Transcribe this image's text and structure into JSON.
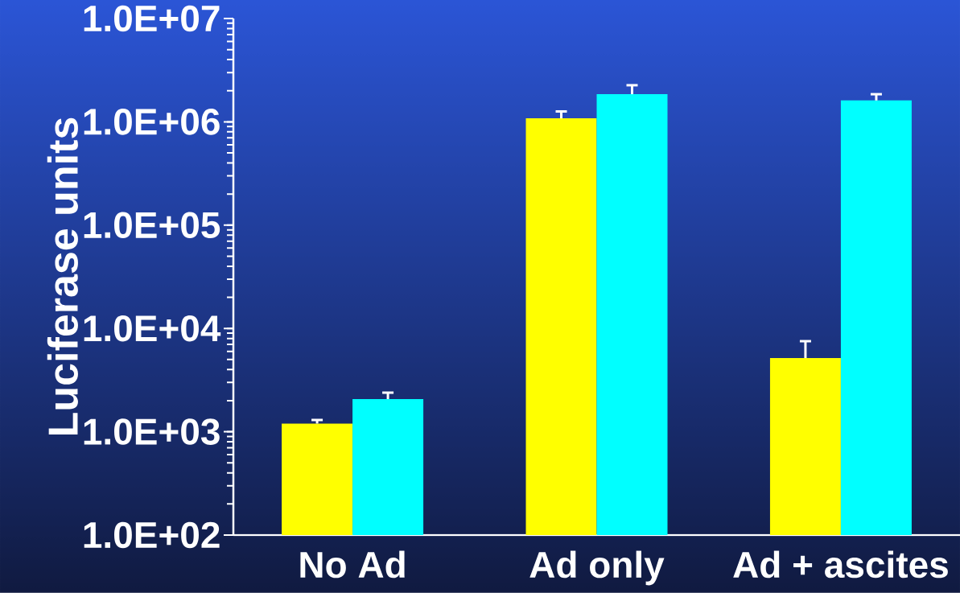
{
  "chart_data": {
    "type": "bar",
    "ylabel": "Luciferase units",
    "categories": [
      "No Ad",
      "Ad only",
      "Ad + ascites"
    ],
    "series": [
      {
        "color": "#ffff00",
        "values": [
          1200,
          1080000,
          5170
        ],
        "errors": [
          [
            1200,
            1300
          ],
          [
            1080000,
            1260000
          ],
          [
            5170,
            7530
          ]
        ]
      },
      {
        "color": "#00ffff",
        "values": [
          2070,
          1850000,
          1610000
        ],
        "errors": [
          [
            2070,
            2390
          ],
          [
            1850000,
            2260000
          ],
          [
            1610000,
            1850000
          ]
        ]
      }
    ],
    "log": true,
    "ylim": [
      100,
      10000000
    ],
    "yticks": [
      {
        "value": 100,
        "label": "1.0E+02"
      },
      {
        "value": 1000,
        "label": "1.0E+03"
      },
      {
        "value": 10000,
        "label": "1.0E+04"
      },
      {
        "value": 100000,
        "label": "1.0E+05"
      },
      {
        "value": 1000000,
        "label": "1.0E+06"
      },
      {
        "value": 10000000,
        "label": "1.0E+07"
      }
    ],
    "grid": false
  }
}
